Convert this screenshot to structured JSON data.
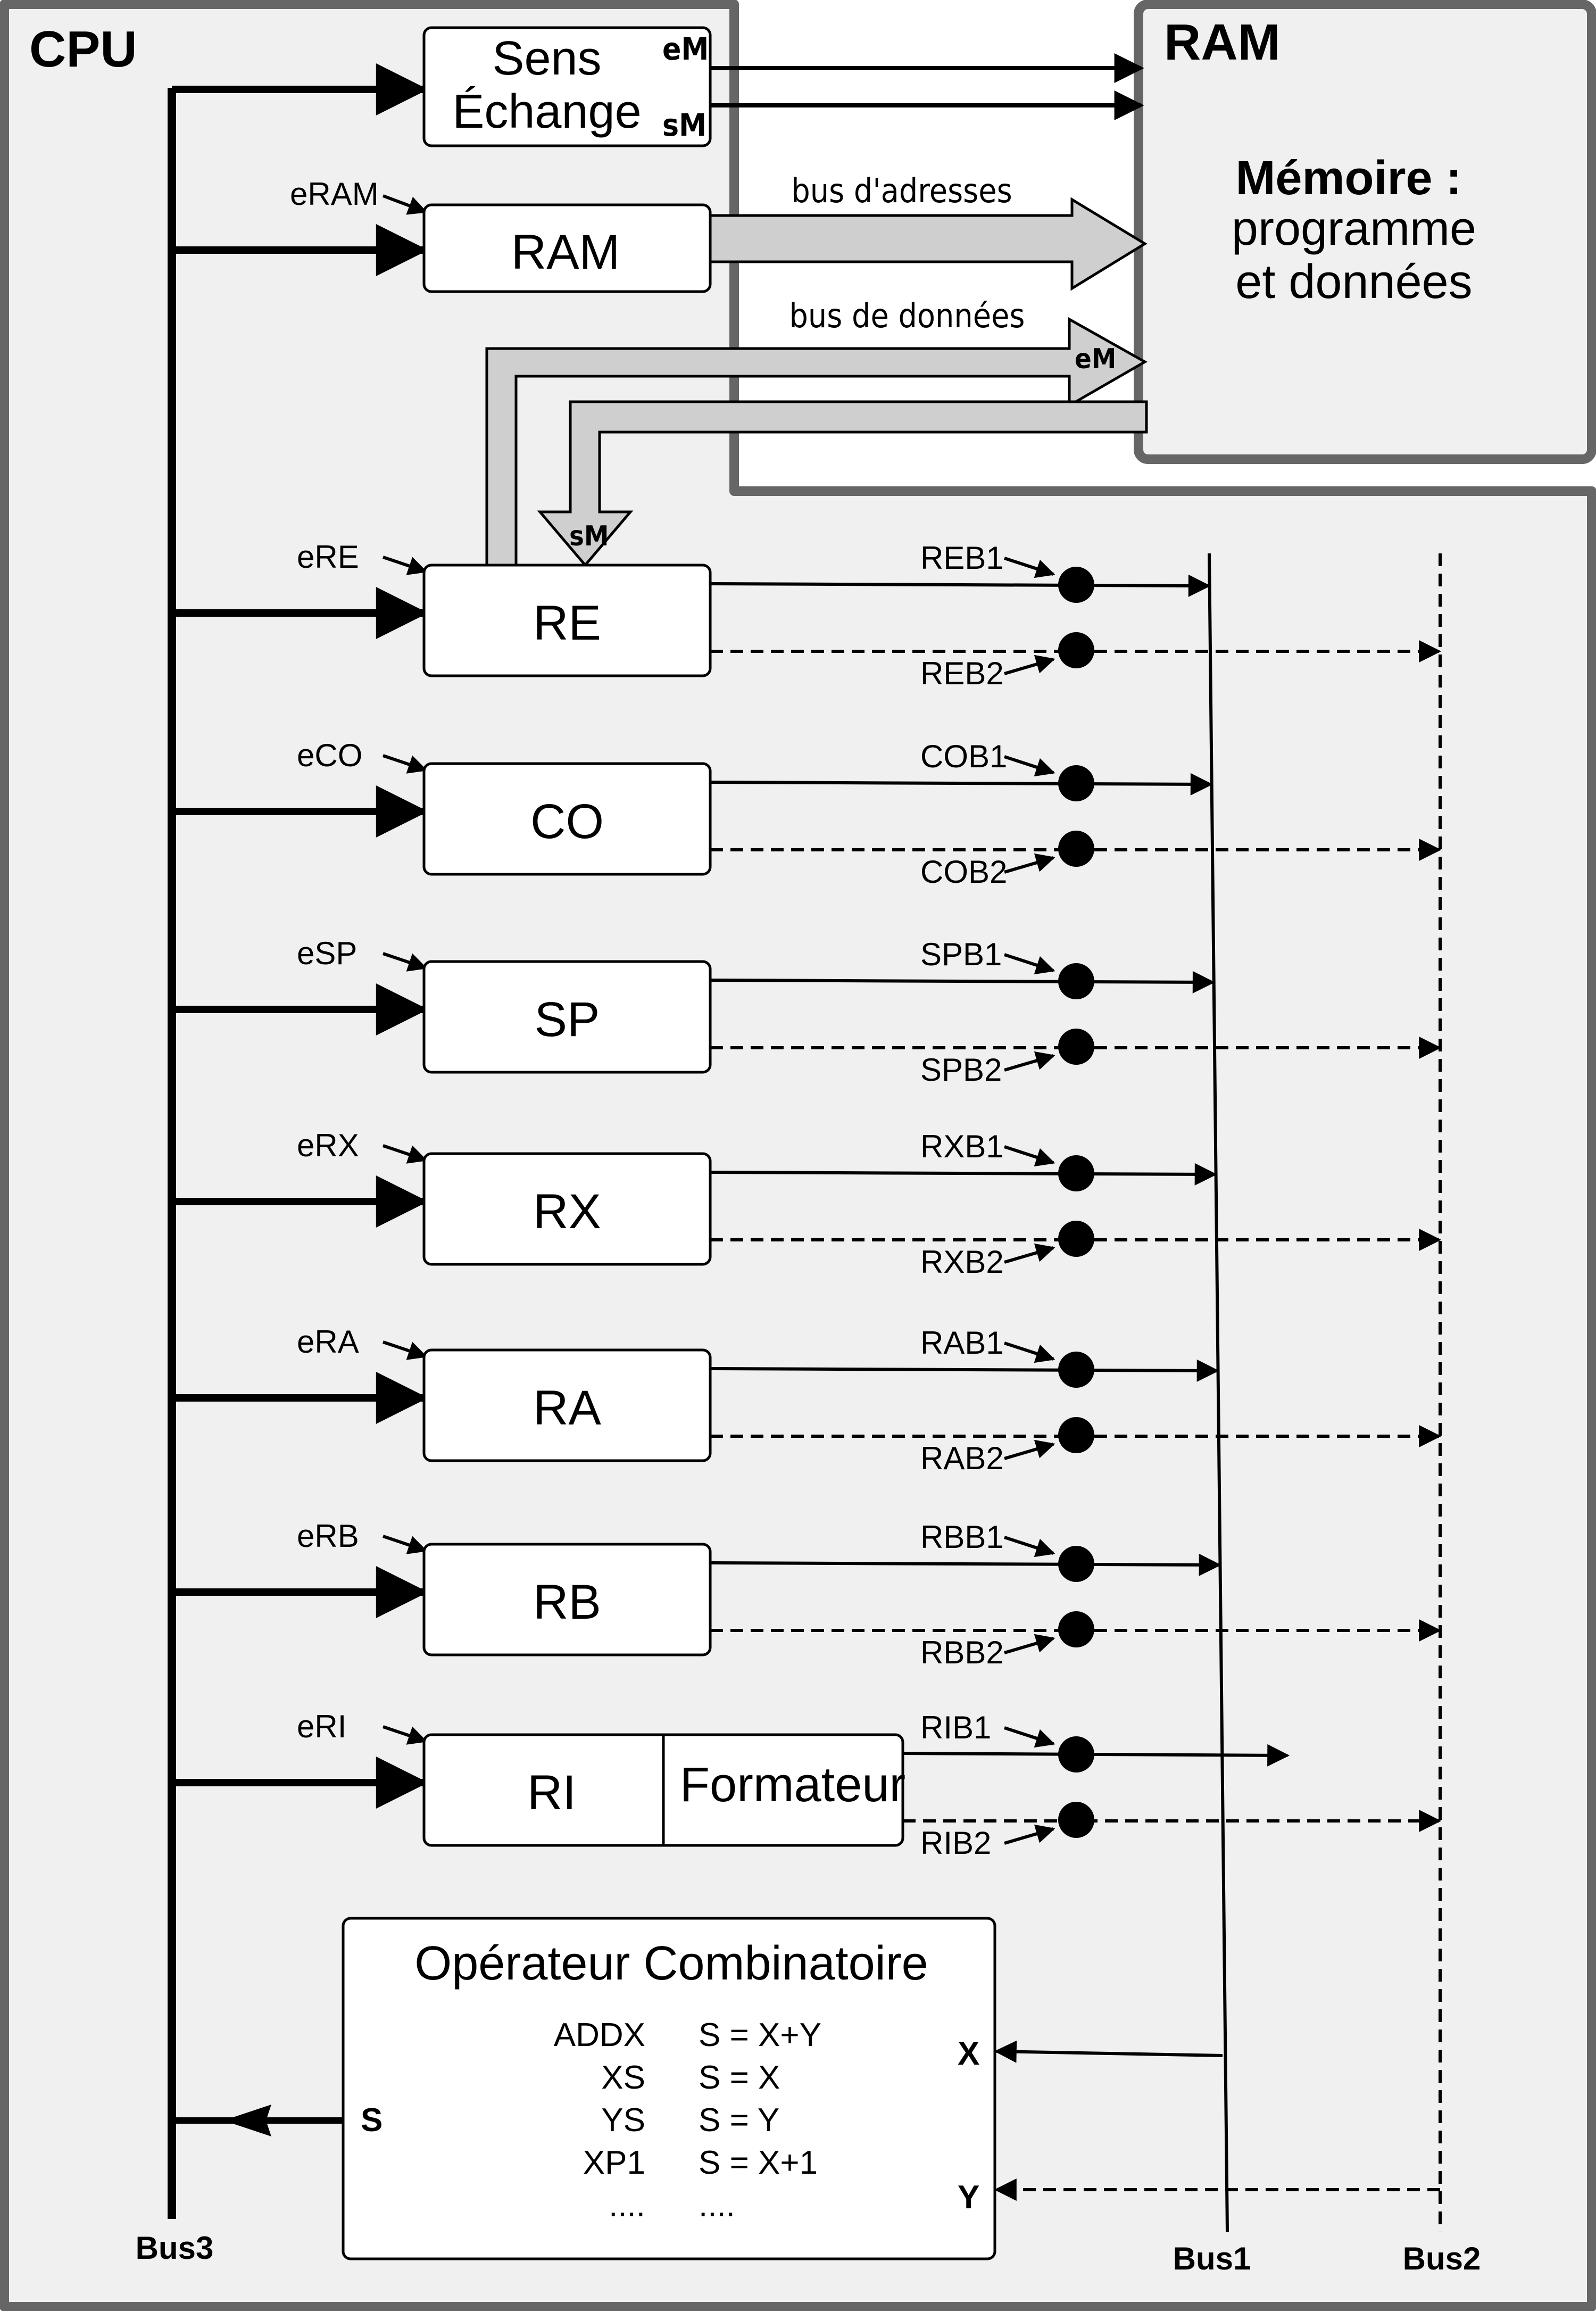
{
  "cpu": {
    "title": "CPU"
  },
  "ram_block": {
    "title": "RAM",
    "memory_title": "Mémoire :",
    "memory_line2": "programme",
    "memory_line3": "et données"
  },
  "exchange": {
    "line1": "Sens",
    "line2": "Échange",
    "em": "eM",
    "sm": "sM"
  },
  "address_register": {
    "label": "RAM",
    "enable": "eRAM"
  },
  "buses": {
    "address": "bus d'adresses",
    "data": "bus de données",
    "data_em": "eM",
    "data_sm": "sM",
    "bus1": "Bus1",
    "bus2": "Bus2",
    "bus3": "Bus3"
  },
  "registers": [
    {
      "name": "RE",
      "enable": "eRE",
      "b1": "REB1",
      "b2": "REB2"
    },
    {
      "name": "CO",
      "enable": "eCO",
      "b1": "COB1",
      "b2": "COB2"
    },
    {
      "name": "SP",
      "enable": "eSP",
      "b1": "SPB1",
      "b2": "SPB2"
    },
    {
      "name": "RX",
      "enable": "eRX",
      "b1": "RXB1",
      "b2": "RXB2"
    },
    {
      "name": "RA",
      "enable": "eRA",
      "b1": "RAB1",
      "b2": "RAB2"
    },
    {
      "name": "RB",
      "enable": "eRB",
      "b1": "RBB1",
      "b2": "RBB2"
    },
    {
      "name": "RI",
      "enable": "eRI",
      "b1": "RIB1",
      "b2": "RIB2",
      "extra": "Formateur"
    }
  ],
  "operator": {
    "title": "Opérateur Combinatoire",
    "ops": [
      {
        "code": "ADDX",
        "expr": "S = X+Y"
      },
      {
        "code": "XS",
        "expr": "S = X"
      },
      {
        "code": "YS",
        "expr": "S = Y"
      },
      {
        "code": "XP1",
        "expr": "S = X+1"
      },
      {
        "code": "....",
        "expr": "...."
      }
    ],
    "input_x": "X",
    "input_y": "Y",
    "output_s": "S"
  }
}
